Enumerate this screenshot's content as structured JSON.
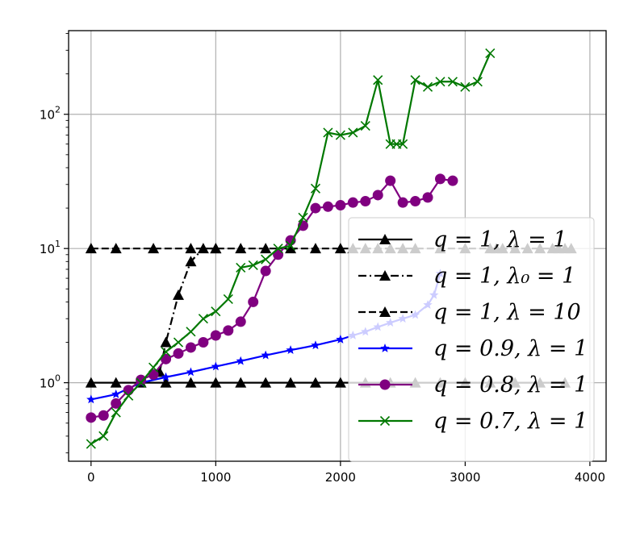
{
  "chart_data": {
    "type": "line",
    "title": "",
    "xlabel": "",
    "ylabel": "",
    "xlim": [
      -180,
      4130
    ],
    "ylim": [
      0.26,
      420
    ],
    "yscale": "log",
    "grid": true,
    "legend_position": "right",
    "xticks": [
      0,
      1000,
      2000,
      3000,
      4000
    ],
    "yticks": [
      {
        "value": 1,
        "mant": "10",
        "exp": "0"
      },
      {
        "value": 10,
        "mant": "10",
        "exp": "1"
      },
      {
        "value": 100,
        "mant": "10",
        "exp": "2"
      }
    ],
    "series": [
      {
        "name": "q = 1, λ = 1",
        "color": "#000000",
        "dash": "solid",
        "marker": "triangle",
        "x": [
          0,
          200,
          400,
          600,
          800,
          1000,
          1200,
          1400,
          1600,
          1800,
          2000,
          2200,
          2400,
          2600,
          2800,
          3000,
          3200,
          3400,
          3600,
          3800
        ],
        "y": [
          1,
          1,
          1,
          1,
          1,
          1,
          1,
          1,
          1,
          1,
          1,
          1,
          1,
          1,
          1,
          1,
          1,
          1,
          1,
          1
        ]
      },
      {
        "name": "q = 1, λ₀ = 1",
        "color": "#000000",
        "dash": "dashdot",
        "marker": "triangle",
        "x": [
          550,
          600,
          700,
          800,
          900,
          1000
        ],
        "y": [
          1.2,
          2.0,
          4.5,
          8.0,
          10,
          10
        ]
      },
      {
        "name": "q = 1, λ = 10",
        "color": "#000000",
        "dash": "dashed",
        "marker": "triangle",
        "x": [
          0,
          200,
          500,
          800,
          1000,
          1200,
          1400,
          1600,
          1800,
          2000,
          2100,
          2200,
          2300,
          2400,
          2500,
          2600,
          2800,
          3000,
          3200,
          3250,
          3300,
          3400,
          3500,
          3600,
          3700,
          3750,
          3800,
          3850
        ],
        "y": [
          10,
          10,
          10,
          10,
          10,
          10,
          10,
          10,
          10,
          10,
          10,
          10,
          10,
          10,
          10,
          10,
          10,
          10,
          10,
          10,
          10,
          10,
          10,
          10,
          10,
          10,
          10,
          10
        ]
      },
      {
        "name": "q = 0.9, λ = 1",
        "color": "#0000ff",
        "dash": "solid",
        "marker": "star",
        "x": [
          0,
          200,
          400,
          600,
          800,
          1000,
          1200,
          1400,
          1600,
          1800,
          2000,
          2100,
          2200,
          2300,
          2400,
          2500,
          2600,
          2700,
          2750,
          2800
        ],
        "y": [
          0.75,
          0.82,
          1.0,
          1.1,
          1.2,
          1.32,
          1.45,
          1.6,
          1.75,
          1.9,
          2.1,
          2.25,
          2.4,
          2.6,
          2.8,
          3.0,
          3.2,
          3.8,
          4.5,
          6.5
        ]
      },
      {
        "name": "q = 0.8, λ = 1",
        "color": "#800080",
        "dash": "solid",
        "marker": "circle",
        "x": [
          0,
          100,
          200,
          300,
          400,
          500,
          600,
          700,
          800,
          900,
          1000,
          1100,
          1200,
          1300,
          1400,
          1500,
          1600,
          1700,
          1800,
          1900,
          2000,
          2100,
          2200,
          2300,
          2400,
          2500,
          2600,
          2700,
          2800,
          2900
        ],
        "y": [
          0.55,
          0.57,
          0.7,
          0.88,
          1.05,
          1.15,
          1.5,
          1.65,
          1.83,
          2.0,
          2.25,
          2.45,
          2.85,
          4.0,
          6.8,
          9.0,
          11.5,
          14.8,
          20.0,
          20.5,
          21.0,
          22.0,
          22.5,
          25.0,
          32.0,
          22.0,
          22.5,
          24.0,
          33.0,
          32.0
        ]
      },
      {
        "name": "q = 0.7, λ = 1",
        "color": "#007800",
        "dash": "solid",
        "marker": "x",
        "x": [
          0,
          100,
          200,
          300,
          400,
          500,
          600,
          700,
          800,
          900,
          1000,
          1100,
          1200,
          1300,
          1400,
          1500,
          1600,
          1700,
          1800,
          1900,
          2000,
          2100,
          2200,
          2300,
          2400,
          2450,
          2500,
          2600,
          2700,
          2800,
          2900,
          3000,
          3100,
          3200
        ],
        "y": [
          0.35,
          0.4,
          0.6,
          0.8,
          1.0,
          1.3,
          1.7,
          2.0,
          2.4,
          3.0,
          3.4,
          4.2,
          7.2,
          7.5,
          8.3,
          10.0,
          10.5,
          17.0,
          28.0,
          73.0,
          70.0,
          73.0,
          82.0,
          180.0,
          60.0,
          60.0,
          60.0,
          180.0,
          160.0,
          175.0,
          175.0,
          160.0,
          175.0,
          285.0
        ]
      }
    ]
  }
}
